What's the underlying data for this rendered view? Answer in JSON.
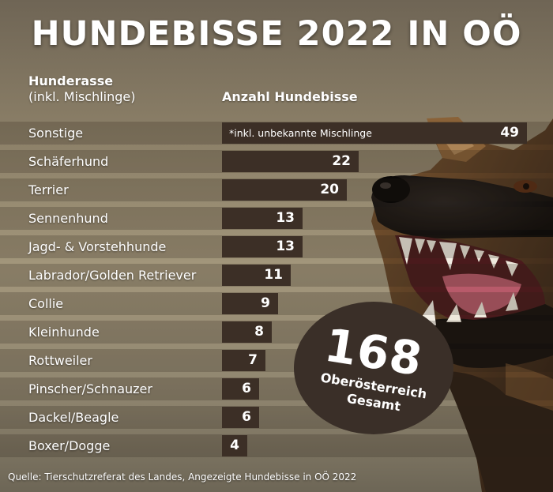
{
  "title": "HUNDEBISSE 2022 IN OÖ",
  "headers": {
    "breed": "Hunderasse",
    "breed_sub": "(inkl. Mischlinge)",
    "count": "Anzahl Hundebisse"
  },
  "note": "*inkl. unbekannte Mischlinge",
  "total": {
    "number": "168",
    "label_1": "Oberösterreich",
    "label_2": "Gesamt"
  },
  "source": "Quelle: Tierschutzreferat des Landes, Angezeigte Hundebisse in OÖ 2022",
  "colors": {
    "bar": "#3c2f26",
    "badge": "#3a2f28",
    "text": "#ffffff"
  },
  "chart_data": {
    "type": "bar",
    "orientation": "horizontal",
    "categories": [
      "Sonstige",
      "Schäferhund",
      "Terrier",
      "Sennenhund",
      "Jagd- & Vorstehhunde",
      "Labrador/Golden Retriever",
      "Collie",
      "Kleinhunde",
      "Rottweiler",
      "Pinscher/Schnauzer",
      "Dackel/Beagle",
      "Boxer/Dogge"
    ],
    "values": [
      49,
      22,
      20,
      13,
      13,
      11,
      9,
      8,
      7,
      6,
      6,
      4
    ],
    "xlabel": "Anzahl Hundebisse",
    "ylabel": "Hunderasse",
    "grid": false,
    "legend": "none"
  }
}
